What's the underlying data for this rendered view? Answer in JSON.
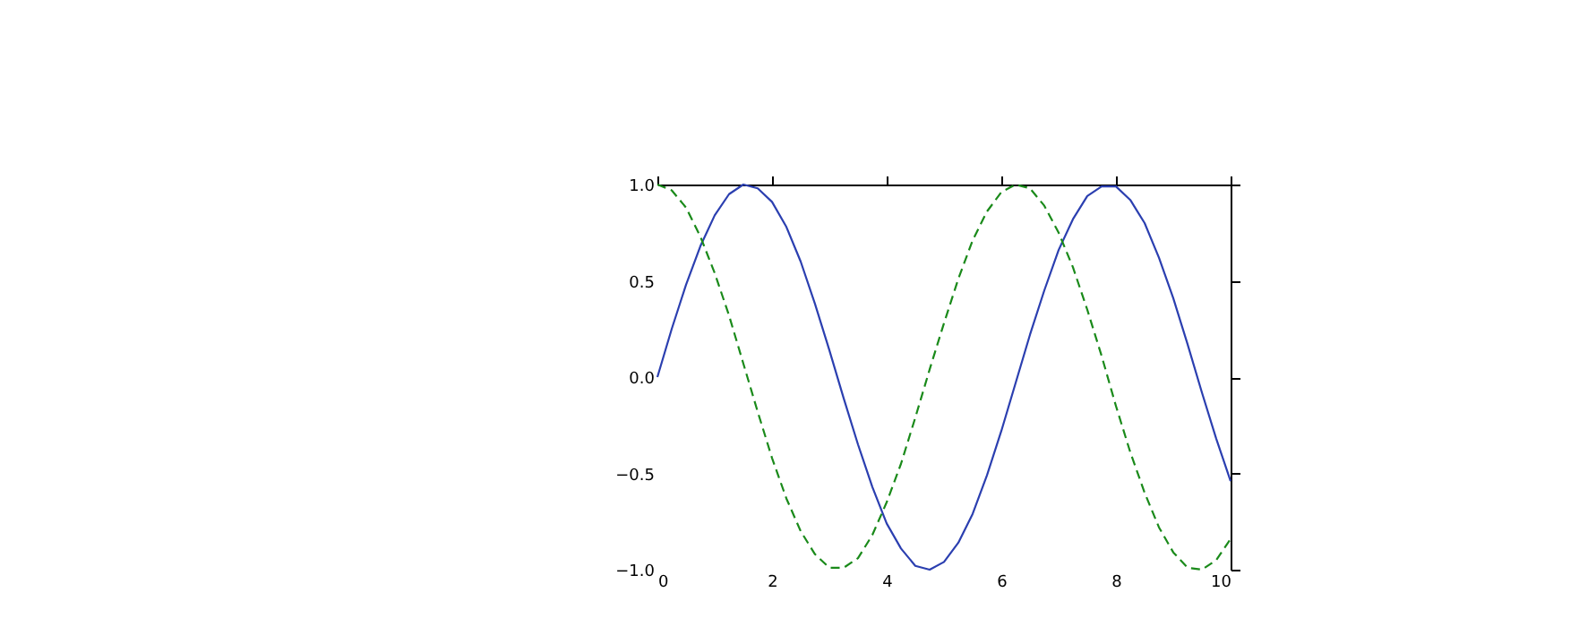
{
  "chart_data": {
    "type": "line",
    "x": [
      0,
      0.25,
      0.5,
      0.75,
      1,
      1.25,
      1.5,
      1.75,
      2,
      2.25,
      2.5,
      2.75,
      3,
      3.25,
      3.5,
      3.75,
      4,
      4.25,
      4.5,
      4.75,
      5,
      5.25,
      5.5,
      5.75,
      6,
      6.25,
      6.5,
      6.75,
      7,
      7.25,
      7.5,
      7.75,
      8,
      8.25,
      8.5,
      8.75,
      9,
      9.25,
      9.5,
      9.75,
      10
    ],
    "series": [
      {
        "color": "#2b3fb0",
        "line_style": "solid",
        "values": [
          0,
          0.25,
          0.48,
          0.68,
          0.84,
          0.95,
          1.0,
          0.98,
          0.91,
          0.78,
          0.6,
          0.38,
          0.14,
          -0.11,
          -0.35,
          -0.57,
          -0.76,
          -0.89,
          -0.98,
          -1.0,
          -0.96,
          -0.86,
          -0.71,
          -0.51,
          -0.28,
          -0.03,
          0.22,
          0.45,
          0.66,
          0.82,
          0.94,
          0.99,
          0.99,
          0.92,
          0.8,
          0.62,
          0.41,
          0.17,
          -0.08,
          -0.32,
          -0.54
        ]
      },
      {
        "color": "#1a8a1a",
        "line_style": "dashed",
        "values": [
          1.0,
          0.97,
          0.88,
          0.73,
          0.54,
          0.32,
          0.07,
          -0.18,
          -0.42,
          -0.63,
          -0.8,
          -0.92,
          -0.99,
          -0.99,
          -0.94,
          -0.82,
          -0.65,
          -0.45,
          -0.21,
          0.04,
          0.28,
          0.51,
          0.71,
          0.86,
          0.96,
          1.0,
          0.98,
          0.89,
          0.75,
          0.57,
          0.35,
          0.11,
          -0.15,
          -0.39,
          -0.6,
          -0.78,
          -0.91,
          -0.99,
          -1.0,
          -0.95,
          -0.84
        ]
      }
    ],
    "xlim": [
      0,
      10
    ],
    "xticks": [
      0,
      2,
      4,
      6,
      8,
      10
    ],
    "ylim": [
      -1.0,
      1.0
    ],
    "yticks": [
      {
        "value": -1,
        "label": "−1.0"
      },
      {
        "value": -0.5,
        "label": "−0.5"
      },
      {
        "value": 0,
        "label": "0.0"
      },
      {
        "value": 0.5,
        "label": "0.5"
      },
      {
        "value": 1,
        "label": "1.0"
      }
    ],
    "grid": false,
    "legend": false,
    "marker": "none"
  }
}
